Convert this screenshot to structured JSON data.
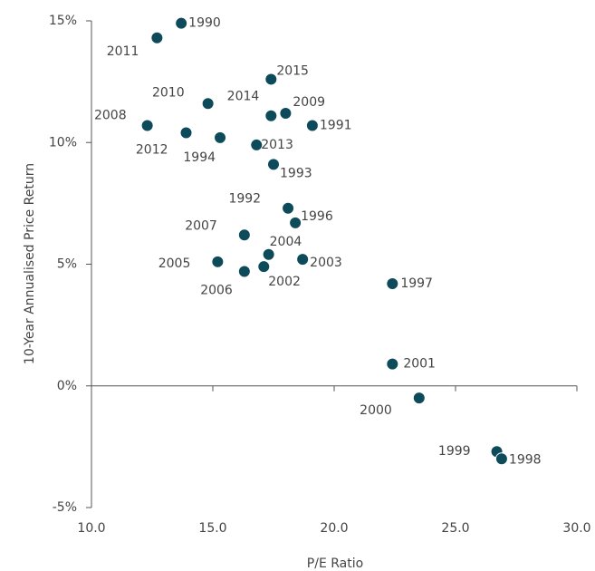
{
  "chart_data": {
    "type": "scatter",
    "x_label": "P/E Ratio",
    "y_label": "10-Year Annualised Price Return",
    "color": "#0d4a5a",
    "labels": [
      "1990",
      "2011",
      "2015",
      "2010",
      "2014",
      "2009",
      "1991",
      "2008",
      "2012",
      "1994",
      "2013",
      "1993",
      "1992",
      "1996",
      "2007",
      "2004",
      "2003",
      "2005",
      "2006",
      "2002",
      "1997",
      "2001",
      "2000",
      "1999",
      "1998"
    ],
    "x": [
      13.7,
      12.7,
      17.4,
      14.8,
      17.4,
      18.0,
      19.1,
      12.3,
      13.9,
      15.3,
      16.8,
      17.5,
      18.1,
      18.4,
      16.3,
      17.3,
      18.7,
      15.2,
      16.3,
      17.1,
      22.4,
      22.4,
      23.5,
      26.7,
      26.9
    ],
    "values": [
      14.9,
      14.3,
      12.6,
      11.6,
      11.1,
      11.2,
      10.7,
      10.7,
      10.4,
      10.2,
      9.9,
      9.1,
      7.3,
      6.7,
      6.2,
      5.4,
      5.2,
      5.1,
      4.7,
      4.9,
      4.2,
      0.9,
      -0.5,
      -2.7,
      -3.0
    ],
    "xlim": [
      10,
      30
    ],
    "ylim": [
      -5,
      15
    ],
    "xticks": [
      {
        "value": 10,
        "label": "10.0"
      },
      {
        "value": 15,
        "label": "15.0"
      },
      {
        "value": 20,
        "label": "20.0"
      },
      {
        "value": 25,
        "label": "25.0"
      },
      {
        "value": 30,
        "label": "30.0"
      }
    ],
    "yticks": [
      {
        "value": -5,
        "label": "-5%"
      },
      {
        "value": 0,
        "label": "0%"
      },
      {
        "value": 5,
        "label": "5%"
      },
      {
        "value": 10,
        "label": "10%"
      },
      {
        "value": 15,
        "label": "15%"
      }
    ]
  }
}
